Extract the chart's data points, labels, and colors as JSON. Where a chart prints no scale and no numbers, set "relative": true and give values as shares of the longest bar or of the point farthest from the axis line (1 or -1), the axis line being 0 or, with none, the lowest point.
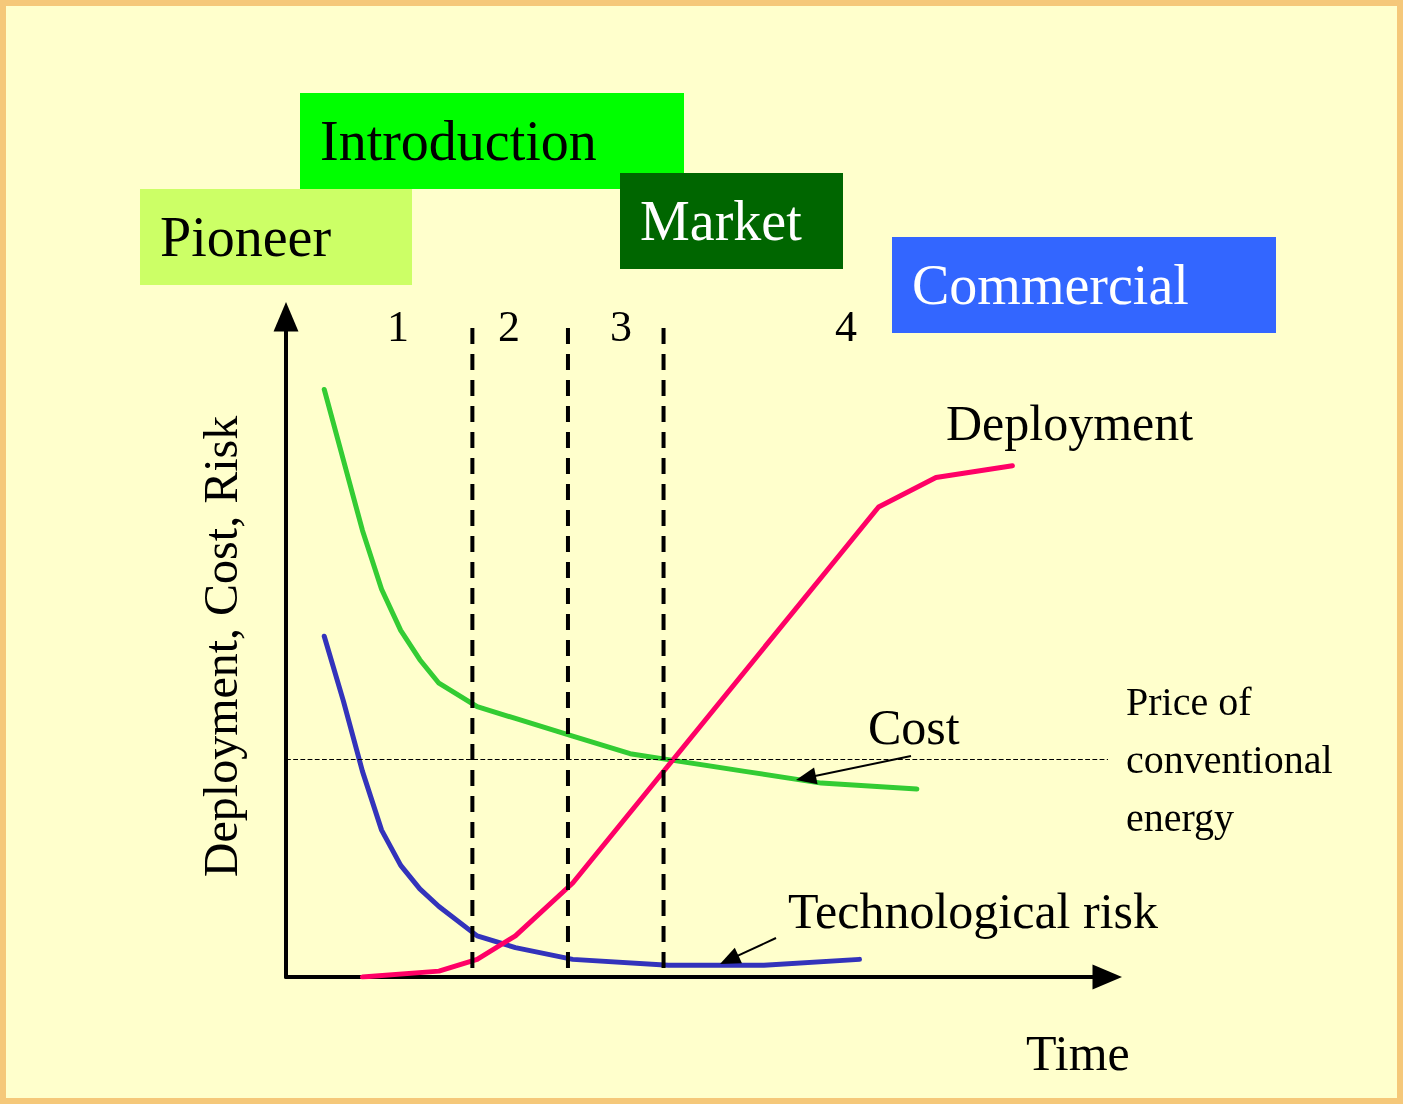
{
  "chart_data": {
    "type": "line",
    "relative": true,
    "xlabel": "Time",
    "ylabel": "Deployment, Cost, Risk",
    "categories": [
      null,
      null,
      null,
      null,
      null,
      null,
      null,
      null,
      null,
      null,
      null,
      null,
      null,
      null,
      null,
      null,
      null,
      null,
      null,
      null,
      null,
      null,
      null,
      null,
      null,
      null,
      null,
      null,
      null,
      null,
      null,
      null,
      null,
      null,
      null,
      null,
      null,
      null,
      null,
      null,
      null,
      null,
      null,
      null
    ],
    "series": [
      {
        "name": "Cost",
        "color": "#33cc33",
        "values": [
          null,
          null,
          1.0,
          0.88,
          0.76,
          0.66,
          0.59,
          0.54,
          0.5,
          null,
          0.46,
          null,
          0.44,
          null,
          null,
          0.41,
          null,
          null,
          0.38,
          null,
          0.37,
          null,
          null,
          null,
          0.35,
          null,
          null,
          null,
          0.33,
          null,
          null,
          null,
          null,
          0.32,
          null,
          null,
          null,
          null,
          null,
          null,
          null,
          null,
          null,
          null
        ]
      },
      {
        "name": "Technological risk",
        "color": "#3333bb",
        "values": [
          null,
          null,
          0.58,
          0.47,
          0.35,
          0.25,
          0.19,
          0.15,
          0.12,
          null,
          0.07,
          null,
          0.05,
          null,
          null,
          0.03,
          null,
          null,
          null,
          null,
          0.02,
          null,
          null,
          null,
          null,
          0.02,
          null,
          null,
          null,
          null,
          0.03,
          null,
          null,
          null,
          null,
          null,
          null,
          null,
          null,
          null,
          null,
          null,
          null,
          null
        ]
      },
      {
        "name": "Deployment",
        "color": "#ff0066",
        "values": [
          null,
          null,
          null,
          null,
          0.0,
          null,
          null,
          null,
          0.01,
          null,
          0.03,
          null,
          0.07,
          null,
          null,
          0.16,
          null,
          null,
          null,
          null,
          0.36,
          null,
          null,
          null,
          null,
          0.56,
          null,
          null,
          null,
          0.72,
          null,
          0.8,
          null,
          null,
          0.85,
          null,
          null,
          null,
          0.87,
          null,
          null,
          null,
          null,
          null
        ]
      }
    ],
    "ref_lines": [
      {
        "axis": "y",
        "value": 0.37,
        "label": "Price of conventional energy",
        "line_style": "dashed"
      }
    ],
    "annotations": [
      "Pioneer",
      "Introduction",
      "Market",
      "Commercial",
      "1",
      "2",
      "3",
      "4"
    ],
    "legend": false,
    "grid": false,
    "marker": "none",
    "line_style": "solid"
  }
}
